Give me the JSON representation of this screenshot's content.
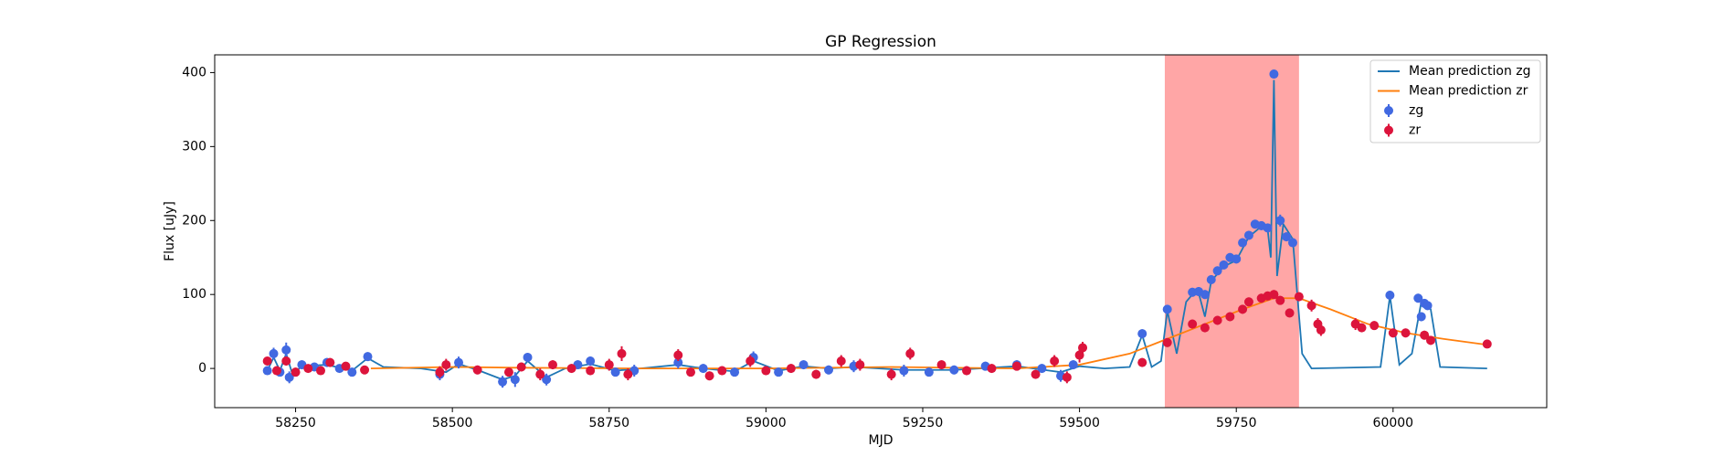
{
  "chart_data": {
    "type": "errorbar",
    "title": "GP Regression",
    "x_label": "MJD",
    "y_label": "Flux [uJy]",
    "xlim": [
      58121,
      60245
    ],
    "ylim": [
      -53,
      424
    ],
    "xticks": [
      58250,
      58500,
      58750,
      59000,
      59250,
      59500,
      59750,
      60000
    ],
    "yticks": [
      0,
      100,
      200,
      300,
      400
    ],
    "axvspan": [
      59636,
      59850
    ],
    "span_color": "#ffa6a6",
    "legend": "upper right",
    "series": [
      {
        "name": "Mean prediction zg",
        "type": "line",
        "color": "#1f77b4",
        "x": [
          58205,
          58215,
          58225,
          58235,
          58245,
          58260,
          58300,
          58340,
          58365,
          58390,
          58450,
          58490,
          58510,
          58540,
          58580,
          58600,
          58620,
          58650,
          58680,
          58720,
          58760,
          58800,
          58860,
          58900,
          58950,
          58980,
          59020,
          59060,
          59100,
          59140,
          59220,
          59300,
          59400,
          59470,
          59500,
          59540,
          59580,
          59600,
          59615,
          59630,
          59640,
          59655,
          59670,
          59680,
          59690,
          59700,
          59710,
          59730,
          59750,
          59770,
          59790,
          59800,
          59805,
          59810,
          59815,
          59825,
          59840,
          59855,
          59870,
          59980,
          59995,
          60010,
          60030,
          60045,
          60060,
          60075,
          60150
        ],
        "values": [
          -3,
          15,
          -3,
          20,
          -8,
          3,
          5,
          -3,
          14,
          2,
          0,
          -5,
          6,
          -2,
          -15,
          -10,
          10,
          -12,
          0,
          6,
          -3,
          0,
          5,
          0,
          -4,
          10,
          -3,
          3,
          0,
          2,
          -2,
          -2,
          3,
          -5,
          3,
          0,
          2,
          45,
          2,
          10,
          78,
          20,
          90,
          100,
          102,
          70,
          118,
          138,
          146,
          178,
          192,
          188,
          150,
          390,
          125,
          195,
          175,
          20,
          0,
          2,
          98,
          5,
          20,
          90,
          80,
          2,
          0
        ]
      },
      {
        "name": "Mean prediction zr",
        "type": "line",
        "color": "#ff7f0e",
        "x": [
          58370,
          58500,
          58600,
          58800,
          59000,
          59200,
          59400,
          59500,
          59580,
          59640,
          59700,
          59760,
          59810,
          59850,
          59900,
          59960,
          60020,
          60080,
          60150
        ],
        "values": [
          0,
          2,
          1,
          0,
          0,
          2,
          0,
          5,
          20,
          40,
          60,
          80,
          95,
          95,
          80,
          60,
          48,
          40,
          32
        ]
      },
      {
        "name": "zg",
        "type": "points",
        "color": "#4169e1",
        "x": [
          58205,
          58215,
          58225,
          58235,
          58240,
          58260,
          58280,
          58300,
          58320,
          58340,
          58365,
          58480,
          58510,
          58580,
          58600,
          58620,
          58650,
          58700,
          58720,
          58760,
          58790,
          58860,
          58900,
          58950,
          58980,
          59020,
          59060,
          59100,
          59140,
          59220,
          59260,
          59300,
          59350,
          59400,
          59440,
          59470,
          59490,
          59600,
          59640,
          59680,
          59690,
          59700,
          59710,
          59720,
          59730,
          59740,
          59750,
          59760,
          59770,
          59780,
          59790,
          59800,
          59810,
          59820,
          59830,
          59840,
          59995,
          60040,
          60045,
          60050,
          60055
        ],
        "values": [
          -3,
          20,
          -5,
          25,
          -12,
          5,
          2,
          8,
          0,
          -5,
          16,
          -8,
          8,
          -18,
          -15,
          15,
          -15,
          5,
          10,
          -5,
          -3,
          8,
          0,
          -5,
          15,
          -5,
          5,
          -2,
          3,
          -3,
          -5,
          -2,
          3,
          5,
          0,
          -10,
          5,
          47,
          80,
          103,
          104,
          100,
          120,
          132,
          140,
          150,
          148,
          170,
          180,
          195,
          193,
          190,
          398,
          200,
          178,
          170,
          99,
          95,
          70,
          88,
          85
        ],
        "errors": [
          5,
          8,
          6,
          10,
          8,
          6,
          5,
          6,
          5,
          6,
          6,
          8,
          8,
          8,
          10,
          6,
          8,
          6,
          6,
          6,
          8,
          8,
          6,
          6,
          8,
          6,
          6,
          6,
          8,
          8,
          6,
          6,
          6,
          6,
          6,
          8,
          6,
          6,
          6,
          6,
          6,
          6,
          6,
          6,
          6,
          6,
          6,
          6,
          6,
          6,
          6,
          6,
          6,
          8,
          6,
          6,
          6,
          6,
          6,
          6,
          6
        ]
      },
      {
        "name": "zr",
        "type": "points",
        "color": "#dc143c",
        "x": [
          58205,
          58220,
          58235,
          58250,
          58270,
          58290,
          58305,
          58330,
          58360,
          58480,
          58490,
          58540,
          58590,
          58610,
          58640,
          58660,
          58690,
          58720,
          58750,
          58770,
          58780,
          58860,
          58880,
          58910,
          58930,
          58975,
          59000,
          59040,
          59080,
          59120,
          59150,
          59200,
          59230,
          59280,
          59320,
          59360,
          59400,
          59430,
          59460,
          59480,
          59500,
          59505,
          59600,
          59640,
          59680,
          59700,
          59720,
          59740,
          59760,
          59770,
          59790,
          59800,
          59810,
          59820,
          59835,
          59850,
          59870,
          59880,
          59885,
          59940,
          59950,
          59970,
          60000,
          60020,
          60050,
          60060,
          60150
        ],
        "values": [
          10,
          -3,
          10,
          -5,
          0,
          -3,
          8,
          3,
          -2,
          -5,
          5,
          -2,
          -5,
          2,
          -8,
          5,
          0,
          -3,
          5,
          20,
          -8,
          18,
          -5,
          -10,
          -3,
          10,
          -3,
          0,
          -8,
          10,
          5,
          -8,
          20,
          5,
          -3,
          0,
          3,
          -8,
          10,
          -12,
          18,
          28,
          8,
          35,
          60,
          55,
          65,
          70,
          80,
          90,
          95,
          98,
          100,
          92,
          75,
          97,
          85,
          60,
          52,
          60,
          55,
          58,
          48,
          48,
          45,
          38,
          33
        ],
        "errors": [
          5,
          6,
          6,
          6,
          5,
          5,
          6,
          5,
          5,
          8,
          8,
          6,
          6,
          6,
          8,
          6,
          6,
          6,
          8,
          10,
          8,
          8,
          6,
          6,
          6,
          8,
          6,
          6,
          6,
          8,
          8,
          8,
          8,
          6,
          6,
          6,
          6,
          6,
          8,
          8,
          10,
          8,
          6,
          6,
          6,
          6,
          6,
          6,
          6,
          6,
          6,
          6,
          6,
          6,
          6,
          6,
          8,
          8,
          8,
          8,
          6,
          6,
          6,
          6,
          6,
          6,
          5
        ]
      }
    ]
  }
}
